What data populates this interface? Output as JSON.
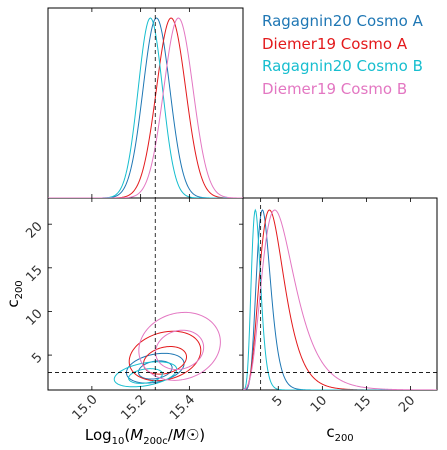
{
  "chart_data": {
    "type": "corner",
    "parameters": [
      {
        "key": "logM",
        "label": "Log10(M200c/M☉)",
        "label_parts": [
          "Log",
          "10",
          "(",
          "M",
          "200c",
          "/",
          "M",
          "☉",
          ")"
        ],
        "lim": [
          14.82,
          15.62
        ],
        "ticks": [
          "15.0",
          "15.2",
          "15.4"
        ]
      },
      {
        "key": "c200",
        "label": "c200",
        "label_parts": [
          "c",
          "200"
        ],
        "lim": [
          1.0,
          23.0
        ],
        "ticks": [
          "5",
          "10",
          "15",
          "20"
        ]
      }
    ],
    "truth": {
      "logM": 15.26,
      "c200": 3.0
    },
    "series": [
      {
        "name": "Ragagnin20 Cosmo A",
        "color": "#1f77b4",
        "logM": {
          "mu": 15.265,
          "sigma": 0.055
        },
        "c200": {
          "mode": 3.2,
          "sigma": 0.25
        },
        "contours": [
          {
            "cx": 15.26,
            "cy": 3.3,
            "rx": 0.07,
            "ry": 1.0,
            "rot": 0.18
          },
          {
            "cx": 15.26,
            "cy": 3.5,
            "rx": 0.12,
            "ry": 1.6,
            "rot": 0.2
          }
        ]
      },
      {
        "name": "Diemer19 Cosmo A",
        "color": "#e31a1c",
        "logM": {
          "mu": 15.325,
          "sigma": 0.06
        },
        "c200": {
          "mode": 4.0,
          "sigma": 0.35
        },
        "contours": [
          {
            "cx": 15.3,
            "cy": 4.4,
            "rx": 0.09,
            "ry": 1.5,
            "rot": 0.25
          },
          {
            "cx": 15.3,
            "cy": 4.9,
            "rx": 0.15,
            "ry": 2.7,
            "rot": 0.27
          }
        ]
      },
      {
        "name": "Ragagnin20 Cosmo B",
        "color": "#17becf",
        "logM": {
          "mu": 15.24,
          "sigma": 0.05
        },
        "c200": {
          "mode": 2.4,
          "sigma": 0.22
        },
        "contours": [
          {
            "cx": 15.22,
            "cy": 2.6,
            "rx": 0.07,
            "ry": 0.8,
            "rot": 0.15
          },
          {
            "cx": 15.22,
            "cy": 2.8,
            "rx": 0.13,
            "ry": 1.3,
            "rot": 0.18
          }
        ]
      },
      {
        "name": "Diemer19 Cosmo B",
        "color": "#e377c2",
        "logM": {
          "mu": 15.355,
          "sigma": 0.06
        },
        "c200": {
          "mode": 4.6,
          "sigma": 0.4
        },
        "contours": [
          {
            "cx": 15.36,
            "cy": 5.6,
            "rx": 0.1,
            "ry": 2.2,
            "rot": 0.28
          },
          {
            "cx": 15.36,
            "cy": 6.0,
            "rx": 0.17,
            "ry": 3.8,
            "rot": 0.3
          }
        ]
      }
    ],
    "legend_position": "top-right"
  }
}
